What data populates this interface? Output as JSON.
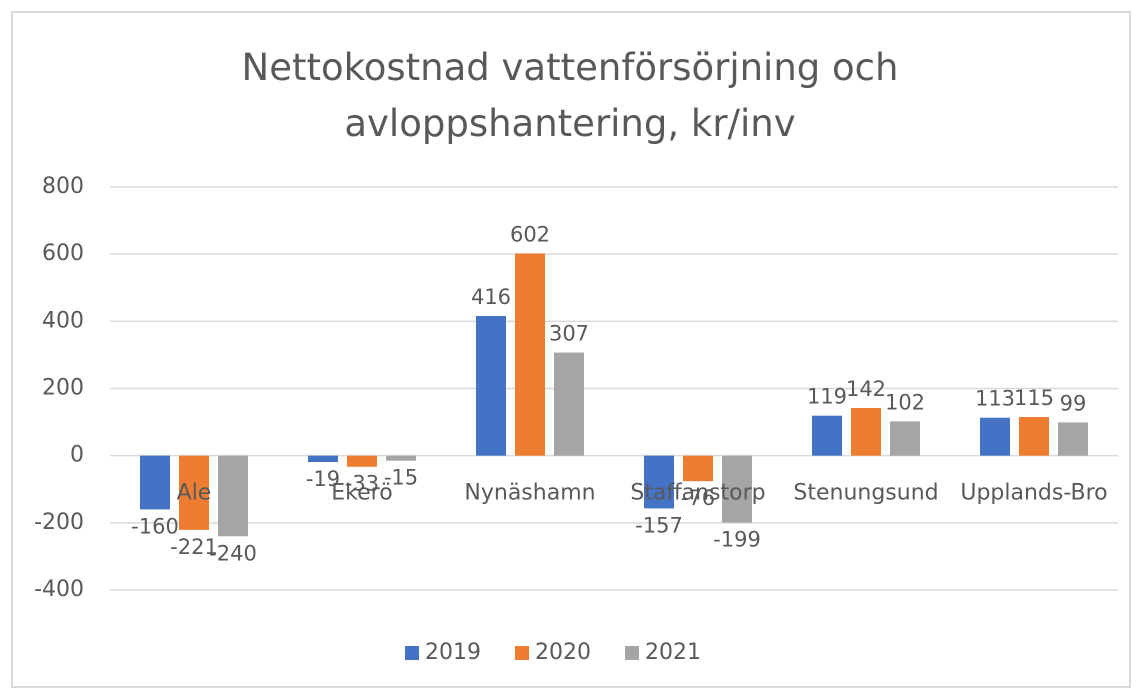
{
  "chart_data": {
    "type": "bar",
    "title": "Nettokostnad vattenförsörjning och avloppshantering, kr/inv",
    "categories": [
      "Ale",
      "Ekerö",
      "Nynäshamn",
      "Staffanstorp",
      "Stenungsund",
      "Upplands-Bro"
    ],
    "series": [
      {
        "name": "2019",
        "color": "#4472c4",
        "values": [
          -160,
          -19,
          416,
          -157,
          119,
          113
        ]
      },
      {
        "name": "2020",
        "color": "#ed7d31",
        "values": [
          -221,
          -33,
          602,
          -76,
          142,
          115
        ]
      },
      {
        "name": "2021",
        "color": "#a5a5a5",
        "values": [
          -240,
          -15,
          307,
          -199,
          102,
          99
        ]
      }
    ],
    "ylim": [
      -400,
      800
    ],
    "yticks": [
      -400,
      -200,
      0,
      200,
      400,
      600,
      800
    ],
    "grid": true,
    "legend": "bottom"
  }
}
